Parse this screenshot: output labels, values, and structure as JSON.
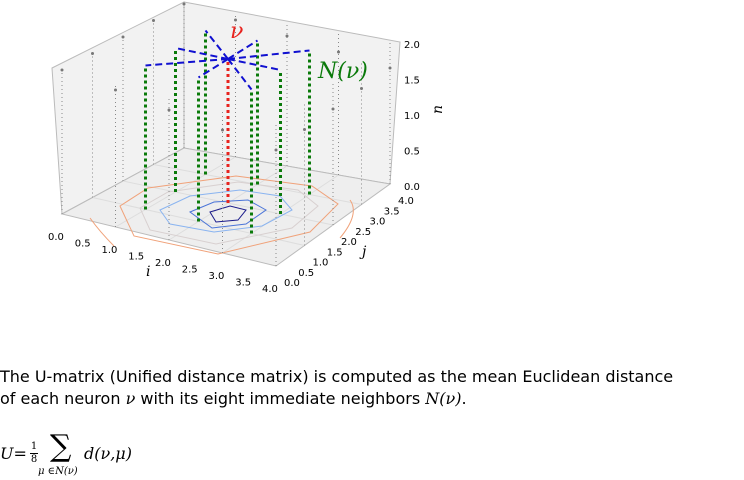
{
  "plot": {
    "i_label": "i",
    "j_label": "j",
    "n_label": "n",
    "i_ticks": [
      "0.0",
      "0.5",
      "1.0",
      "1.5",
      "2.0",
      "2.5",
      "3.0",
      "3.5",
      "4.0"
    ],
    "j_ticks": [
      "0.0",
      "0.5",
      "1.0",
      "1.5",
      "2.0",
      "2.5",
      "3.0",
      "3.5",
      "4.0"
    ],
    "n_ticks": [
      "0.0",
      "0.5",
      "1.0",
      "1.5",
      "2.0"
    ],
    "nu_label": "ν",
    "neighbors_label": "N(ν)",
    "colors": {
      "center": "#e8231e",
      "neighbors": "#0a7a0a",
      "connections": "#1010d0",
      "grid": "#888888"
    }
  },
  "description": {
    "line1": "The U-matrix (Unified distance matrix) is computed as the mean Euclidean distance",
    "line2_prefix": "of each neuron",
    "nu_symbol": "ν",
    "line2_mid": "with its eight immediate neighbors",
    "neighbors_symbol": "N(ν)",
    "line2_suffix": "."
  },
  "formula": {
    "lhs": "U=",
    "frac_num": "1",
    "frac_den": "8",
    "sum_symbol": "∑",
    "sum_sub": "μ ∈N(ν)",
    "body": "d(ν,μ)"
  }
}
